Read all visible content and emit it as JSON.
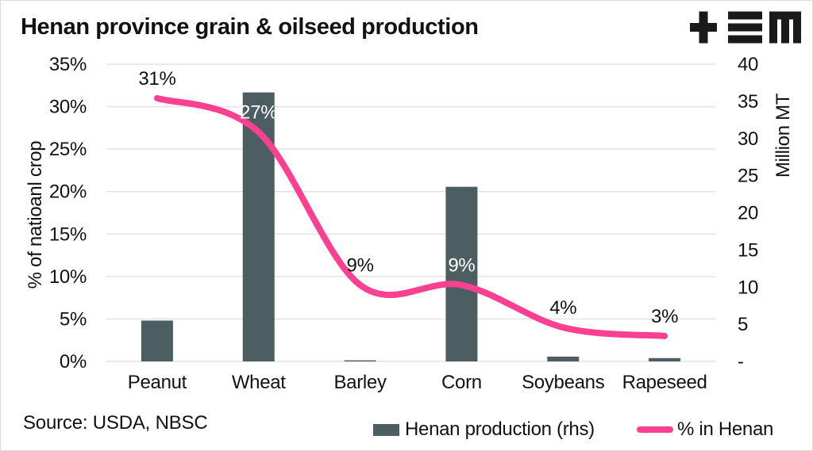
{
  "header": {
    "title": "Henan province grain & oilseed production",
    "logo_name": "tem-logo",
    "logo_color": "#1a1a1a"
  },
  "chart_data": {
    "type": "combo-bar-line",
    "title": "Henan province grain & oilseed production",
    "categories": [
      "Peanut",
      "Wheat",
      "Barley",
      "Corn",
      "Soybeans",
      "Rapeseed"
    ],
    "series": [
      {
        "name": "Henan production (rhs)",
        "type": "bar",
        "axis": "right",
        "color": "#4d5e63",
        "values": [
          5.5,
          36.2,
          0.15,
          23.5,
          0.65,
          0.45
        ]
      },
      {
        "name": "% in Henan",
        "type": "line",
        "axis": "left",
        "color": "#fa4191",
        "values": [
          31,
          27,
          9,
          9,
          4,
          3
        ],
        "labels": [
          "31%",
          "27%",
          "9%",
          "9%",
          "4%",
          "3%"
        ],
        "label_colors": [
          "#111111",
          "#ffffff",
          "#111111",
          "#ffffff",
          "#111111",
          "#111111"
        ]
      }
    ],
    "left_axis": {
      "title": "% of natioanl crop",
      "min": 0,
      "max": 35,
      "tick_step": 5,
      "tick_labels": [
        "35%",
        "30%",
        "25%",
        "20%",
        "15%",
        "10%",
        "5%",
        "0%"
      ]
    },
    "right_axis": {
      "title": "Million MT",
      "min": 0,
      "max": 40,
      "tick_step": 5,
      "tick_labels": [
        "40",
        "35",
        "30",
        "25",
        "20",
        "15",
        "10",
        "5",
        "-"
      ]
    },
    "gridlines": "horizontal",
    "gridline_color": "#e3e3e3",
    "legend_position": "bottom",
    "text_color": "#121212"
  },
  "footer": {
    "source": "Source: USDA, NBSC",
    "legend": [
      {
        "label": "Henan production (rhs)",
        "swatch": "bar-swatch",
        "color": "#4d5e63"
      },
      {
        "label": "% in Henan",
        "swatch": "line-swatch",
        "color": "#fa4191"
      }
    ]
  }
}
